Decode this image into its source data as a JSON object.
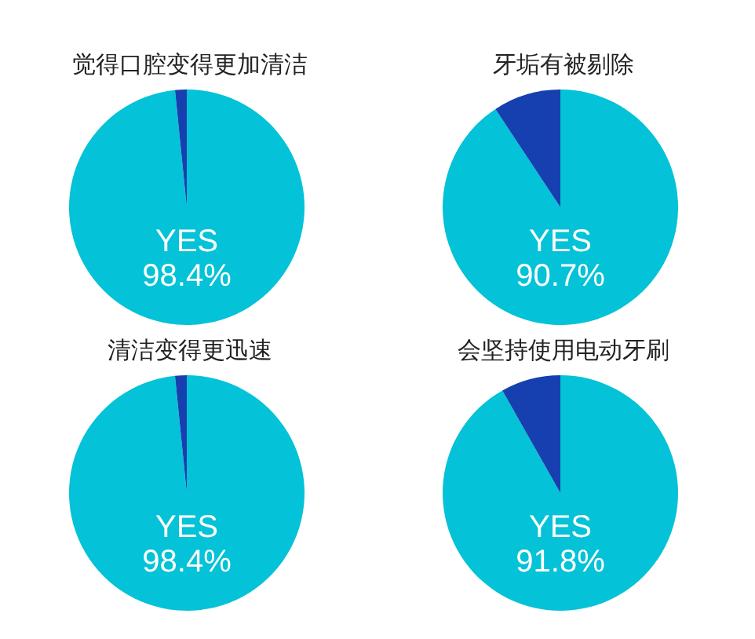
{
  "chart_data": [
    {
      "type": "pie",
      "title": "觉得口腔变得更加清洁",
      "categories": [
        "YES",
        null
      ],
      "values": [
        98.4,
        1.6
      ],
      "colors": [
        "#04c2d7",
        "#1640b0"
      ],
      "value_labels": [
        "98.4%",
        null
      ]
    },
    {
      "type": "pie",
      "title": "牙垢有被剔除",
      "categories": [
        "YES",
        null
      ],
      "values": [
        90.7,
        9.3
      ],
      "colors": [
        "#04c2d7",
        "#1640b0"
      ],
      "value_labels": [
        "90.7%",
        null
      ]
    },
    {
      "type": "pie",
      "title": "清洁变得更迅速",
      "categories": [
        "YES",
        null
      ],
      "values": [
        98.4,
        1.6
      ],
      "colors": [
        "#04c2d7",
        "#1640b0"
      ],
      "value_labels": [
        "98.4%",
        null
      ]
    },
    {
      "type": "pie",
      "title": "会坚持使用电动牙刷",
      "categories": [
        "YES",
        null
      ],
      "values": [
        91.8,
        8.2
      ],
      "colors": [
        "#04c2d7",
        "#1640b0"
      ],
      "value_labels": [
        "91.8%",
        null
      ]
    }
  ]
}
